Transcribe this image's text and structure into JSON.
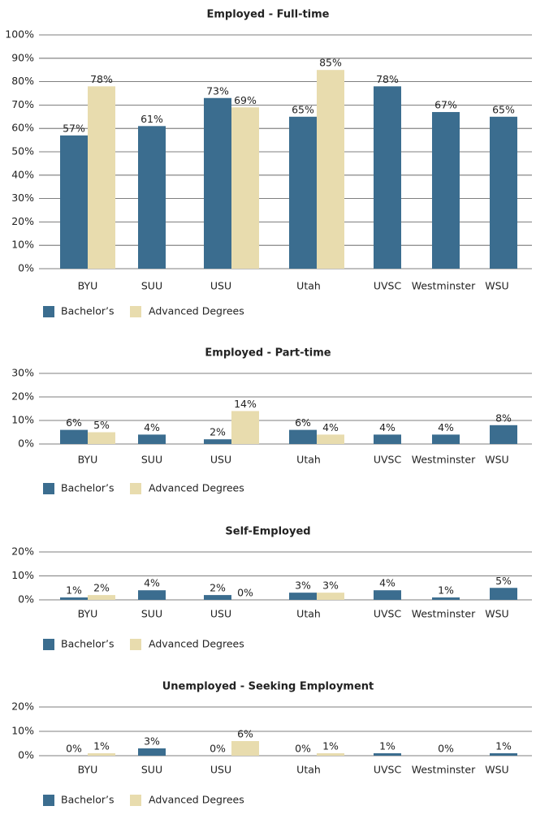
{
  "chart_data": [
    {
      "type": "bar",
      "title": "Employed - Full-time",
      "categories": [
        "BYU",
        "SUU",
        "USU",
        "Utah",
        "UVSC",
        "Westminster",
        "WSU"
      ],
      "series": [
        {
          "name": "Bachelor’s",
          "color": "#3b6d8f",
          "values": [
            57,
            61,
            73,
            65,
            78,
            67,
            65
          ],
          "value_labels": [
            "57%",
            "61%",
            "73%",
            "65%",
            "78%",
            "67%",
            "65%"
          ]
        },
        {
          "name": "Advanced Degrees",
          "color": "#e8dcae",
          "values": [
            78,
            null,
            69,
            85,
            null,
            null,
            null
          ],
          "value_labels": [
            "78%",
            null,
            "69%",
            "85%",
            null,
            null,
            null
          ]
        }
      ],
      "ylim": [
        0,
        100
      ],
      "yticks": [
        {
          "value": 0,
          "label": "0%"
        },
        {
          "value": 10,
          "label": "10%"
        },
        {
          "value": 20,
          "label": "20%"
        },
        {
          "value": 30,
          "label": "30%"
        },
        {
          "value": 40,
          "label": "40%"
        },
        {
          "value": 50,
          "label": "50%"
        },
        {
          "value": 60,
          "label": "60%"
        },
        {
          "value": 70,
          "label": "70%"
        },
        {
          "value": 80,
          "label": "80%"
        },
        {
          "value": 90,
          "label": "90%"
        },
        {
          "value": 100,
          "label": "100%"
        }
      ],
      "grid": true,
      "legend": "bottom-left"
    },
    {
      "type": "bar",
      "title": "Employed - Part-time",
      "categories": [
        "BYU",
        "SUU",
        "USU",
        "Utah",
        "UVSC",
        "Westminster",
        "WSU"
      ],
      "series": [
        {
          "name": "Bachelor’s",
          "color": "#3b6d8f",
          "values": [
            6,
            4,
            2,
            6,
            4,
            4,
            8
          ],
          "value_labels": [
            "6%",
            "4%",
            "2%",
            "6%",
            "4%",
            "4%",
            "8%"
          ]
        },
        {
          "name": "Advanced Degrees",
          "color": "#e8dcae",
          "values": [
            5,
            null,
            14,
            4,
            null,
            null,
            null
          ],
          "value_labels": [
            "5%",
            null,
            "14%",
            "4%",
            null,
            null,
            null
          ]
        }
      ],
      "ylim": [
        0,
        30
      ],
      "yticks": [
        {
          "value": 0,
          "label": "0%"
        },
        {
          "value": 10,
          "label": "10%"
        },
        {
          "value": 20,
          "label": "20%"
        },
        {
          "value": 30,
          "label": "30%"
        }
      ],
      "grid": true,
      "legend": "bottom-left"
    },
    {
      "type": "bar",
      "title": "Self-Employed",
      "categories": [
        "BYU",
        "SUU",
        "USU",
        "Utah",
        "UVSC",
        "Westminster",
        "WSU"
      ],
      "series": [
        {
          "name": "Bachelor’s",
          "color": "#3b6d8f",
          "values": [
            1,
            4,
            2,
            3,
            4,
            1,
            5
          ],
          "value_labels": [
            "1%",
            "4%",
            "2%",
            "3%",
            "4%",
            "1%",
            "5%"
          ]
        },
        {
          "name": "Advanced Degrees",
          "color": "#e8dcae",
          "values": [
            2,
            null,
            0,
            3,
            null,
            null,
            null
          ],
          "value_labels": [
            "2%",
            null,
            "0%",
            "3%",
            null,
            null,
            null
          ]
        }
      ],
      "ylim": [
        0,
        20
      ],
      "yticks": [
        {
          "value": 0,
          "label": "0%"
        },
        {
          "value": 10,
          "label": "10%"
        },
        {
          "value": 20,
          "label": "20%"
        }
      ],
      "grid": true,
      "legend": "bottom-left"
    },
    {
      "type": "bar",
      "title": "Unemployed - Seeking Employment",
      "categories": [
        "BYU",
        "SUU",
        "USU",
        "Utah",
        "UVSC",
        "Westminster",
        "WSU"
      ],
      "series": [
        {
          "name": "Bachelor’s",
          "color": "#3b6d8f",
          "values": [
            0,
            3,
            0,
            0,
            1,
            0,
            1
          ],
          "value_labels": [
            "0%",
            "3%",
            "0%",
            "0%",
            "1%",
            "0%",
            "1%"
          ]
        },
        {
          "name": "Advanced Degrees",
          "color": "#e8dcae",
          "values": [
            1,
            null,
            6,
            1,
            null,
            null,
            null
          ],
          "value_labels": [
            "1%",
            null,
            "6%",
            "1%",
            null,
            null,
            null
          ]
        }
      ],
      "ylim": [
        0,
        20
      ],
      "yticks": [
        {
          "value": 0,
          "label": "0%"
        },
        {
          "value": 10,
          "label": "10%"
        },
        {
          "value": 20,
          "label": "20%"
        }
      ],
      "grid": true,
      "legend": "bottom-left"
    }
  ]
}
